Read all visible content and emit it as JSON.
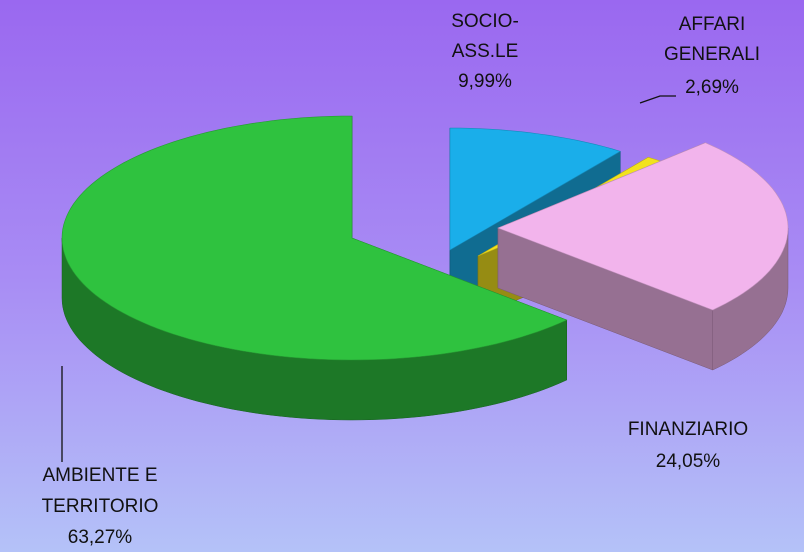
{
  "chart_data": {
    "type": "pie",
    "categories": [
      [
        "SOCIO-",
        "ASS.LE"
      ],
      [
        "AFFARI",
        "GENERALI"
      ],
      [
        "FINANZIARIO"
      ],
      [
        "AMBIENTE E",
        "TERRITORIO"
      ]
    ],
    "values": [
      9.99,
      2.69,
      24.05,
      63.27
    ],
    "value_labels": [
      "9,99%",
      "2,69%",
      "24,05%",
      "63,27%"
    ],
    "colors": [
      "#1aaeea",
      "#f2e21e",
      "#f2b4ec",
      "#2fc23f"
    ]
  }
}
